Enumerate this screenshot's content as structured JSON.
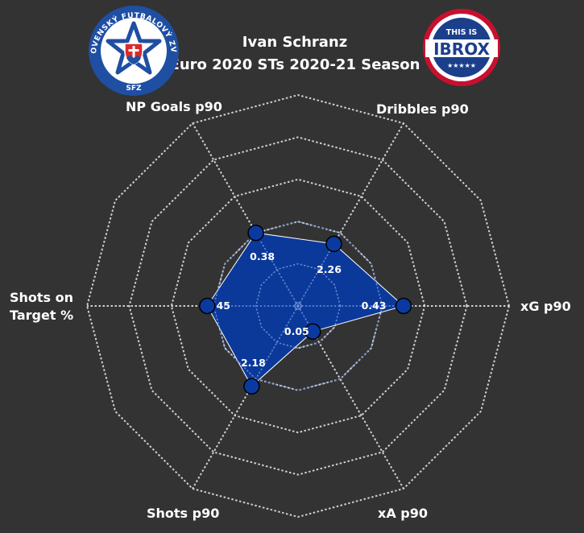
{
  "header": {
    "title_line1": "Ivan Schranz",
    "title_line2": "Euro 2020 STs 2020-21 Season"
  },
  "logos": {
    "left": {
      "name": "sfz-crest",
      "ring_text": "SLOVENSKÝ FUTBALOVÝ ZVÄZ",
      "bottom_text": "SFZ",
      "colors": {
        "ring": "#1f4fa3",
        "inner": "#ffffff",
        "accent": "#d92b2b"
      }
    },
    "right": {
      "name": "this-is-ibrox-logo",
      "top_text": "THIS IS",
      "main_text": "IBROX",
      "stars": "★★★★★",
      "colors": {
        "ring": "#c8102e",
        "band": "#1b3f8b",
        "inner": "#ffffff"
      }
    }
  },
  "chart_data": {
    "type": "radar",
    "title": "Ivan Schranz",
    "subtitle": "Euro 2020 STs 2020-21 Season",
    "axes": [
      {
        "label": "xG p90",
        "display": "0.43",
        "value": 0.43,
        "pct": 0.5
      },
      {
        "label": "Dribbles p90",
        "display": "2.26",
        "value": 2.26,
        "pct": 0.34
      },
      {
        "label": "NP Goals p90",
        "display": "0.38",
        "value": 0.38,
        "pct": 0.4
      },
      {
        "label": "Shots on Target %",
        "label_lines": [
          "Shots on",
          "Target %"
        ],
        "display": "45",
        "value": 45,
        "pct": 0.43
      },
      {
        "label": "Shots p90",
        "display": "2.18",
        "value": 2.18,
        "pct": 0.44
      },
      {
        "label": "xA p90",
        "display": "0.05",
        "value": 0.05,
        "pct": 0.14
      }
    ],
    "rings": 5,
    "grid": true,
    "colors": {
      "background": "#333333",
      "fill": "#0a3aa0",
      "marker": "#0a3aa0",
      "grid": "#d0d0d0"
    }
  }
}
